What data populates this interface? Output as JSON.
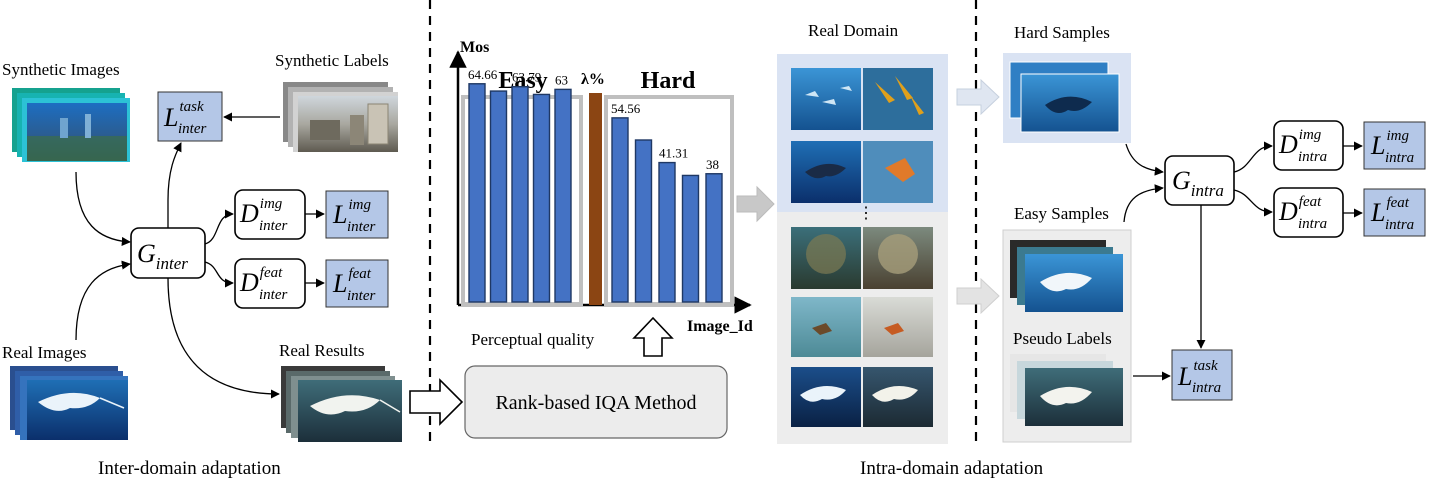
{
  "colors": {
    "loss_box": "#b4c7e7",
    "bar": "#4472c4",
    "bar_frame": "#bfbfbf",
    "divider_bar": "#8b4513",
    "domain_panel_top": "#dae3f3",
    "domain_panel_bottom": "#ededed",
    "iqa_box": "#ececec"
  },
  "inter": {
    "caption": "Inter-domain adaptation",
    "synthetic_images": "Synthetic Images",
    "synthetic_labels": "Synthetic Labels",
    "real_images": "Real  Images",
    "real_results": "Real  Results",
    "generator": {
      "base": "G",
      "sub": "inter"
    },
    "disc_img": {
      "base": "D",
      "sub": "inter",
      "sup": "img"
    },
    "disc_feat": {
      "base": "D",
      "sub": "inter",
      "sup": "feat"
    },
    "loss_task": {
      "base": "L",
      "sub": "inter",
      "sup": "task"
    },
    "loss_img": {
      "base": "L",
      "sub": "inter",
      "sup": "img"
    },
    "loss_feat": {
      "base": "L",
      "sub": "inter",
      "sup": "feat"
    }
  },
  "iqa": {
    "perceptual_quality": "Perceptual quality",
    "method": "Rank-based IQA Method"
  },
  "chart_data": {
    "type": "bar",
    "ylabel": "Mos",
    "xlabel": "Image_Id",
    "split_label": "λ%",
    "groups": [
      {
        "name": "Easy",
        "values": [
          64.66,
          62.5,
          63.79,
          61.5,
          63
        ],
        "labels": [
          "64.66",
          "",
          "63.79",
          "",
          "63"
        ]
      },
      {
        "name": "Hard",
        "values": [
          54.56,
          48,
          41.31,
          37.5,
          38
        ],
        "labels": [
          "54.56",
          "",
          "41.31",
          "",
          "38"
        ]
      }
    ],
    "ylim": [
      0,
      80
    ]
  },
  "intra": {
    "caption": "Intra-domain adaptation",
    "real_domain": "Real Domain",
    "ellipsis": "⋮",
    "hard_samples": "Hard Samples",
    "easy_samples": "Easy Samples",
    "pseudo_labels": "Pseudo Labels",
    "generator": {
      "base": "G",
      "sub": "intra"
    },
    "disc_img": {
      "base": "D",
      "sub": "intra",
      "sup": "img"
    },
    "disc_feat": {
      "base": "D",
      "sub": "intra",
      "sup": "feat"
    },
    "loss_img": {
      "base": "L",
      "sub": "intra",
      "sup": "img"
    },
    "loss_feat": {
      "base": "L",
      "sub": "intra",
      "sup": "feat"
    },
    "loss_task": {
      "base": "L",
      "sub": "intra",
      "sup": "task"
    }
  }
}
